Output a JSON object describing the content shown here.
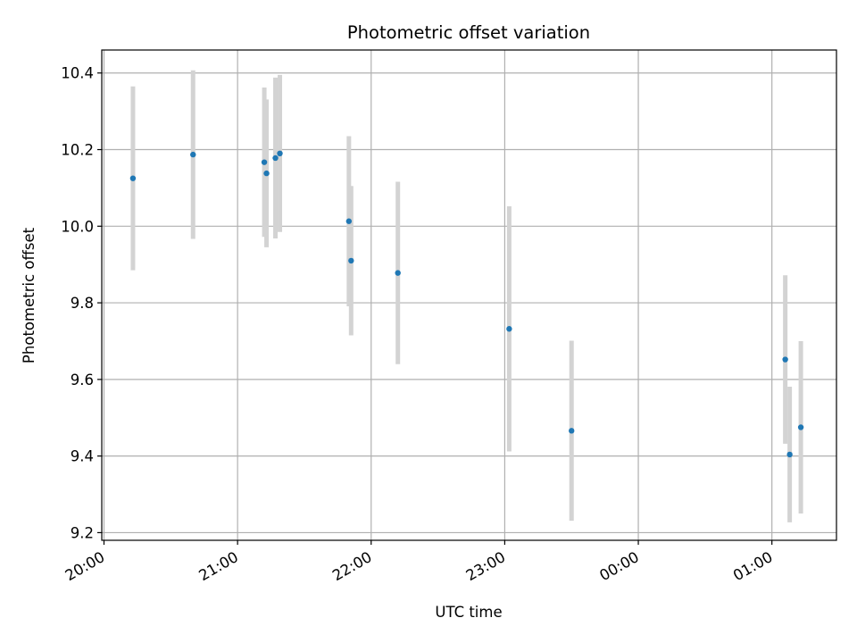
{
  "chart_data": {
    "type": "scatter",
    "title": "Photometric offset variation",
    "xlabel": "UTC time",
    "ylabel": "Photometric offset",
    "x_ticks": [
      "20:00",
      "21:00",
      "22:00",
      "23:00",
      "00:00",
      "01:00"
    ],
    "y_ticks": [
      "9.2",
      "9.4",
      "9.6",
      "9.8",
      "10.0",
      "10.2",
      "10.4"
    ],
    "xlim": [
      "19:59",
      "01:29"
    ],
    "ylim": [
      9.18,
      10.46
    ],
    "grid": true,
    "errorbar_color": "#d3d3d3",
    "marker_color": "#1f77b4",
    "points": [
      {
        "t": "20:13",
        "y": 10.125,
        "err": 0.24
      },
      {
        "t": "20:40",
        "y": 10.187,
        "err": 0.22
      },
      {
        "t": "21:12",
        "y": 10.167,
        "err": 0.195
      },
      {
        "t": "21:13",
        "y": 10.138,
        "err": 0.193
      },
      {
        "t": "21:17",
        "y": 10.178,
        "err": 0.21
      },
      {
        "t": "21:19",
        "y": 10.19,
        "err": 0.205
      },
      {
        "t": "21:50",
        "y": 10.013,
        "err": 0.222
      },
      {
        "t": "21:51",
        "y": 9.91,
        "err": 0.195
      },
      {
        "t": "22:12",
        "y": 9.878,
        "err": 0.238
      },
      {
        "t": "23:02",
        "y": 9.732,
        "err": 0.32
      },
      {
        "t": "23:30",
        "y": 9.466,
        "err": 0.235
      },
      {
        "t": "01:06",
        "y": 9.652,
        "err": 0.22
      },
      {
        "t": "01:08",
        "y": 9.404,
        "err": 0.177
      },
      {
        "t": "01:13",
        "y": 9.475,
        "err": 0.225
      }
    ]
  }
}
